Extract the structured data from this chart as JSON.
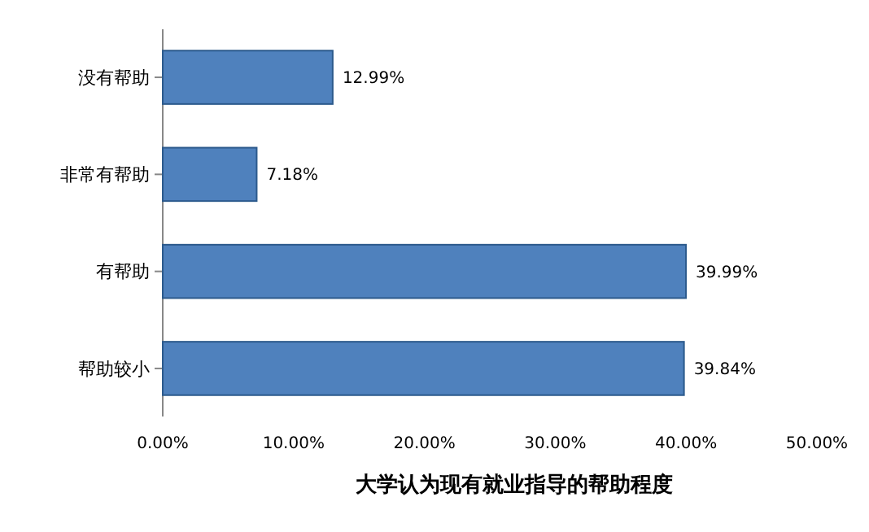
{
  "chart_data": {
    "type": "bar",
    "orientation": "horizontal",
    "title": "大学认为现有就业指导的帮助程度",
    "categories": [
      "没有帮助",
      "非常有帮助",
      "有帮助",
      "帮助较小"
    ],
    "values": [
      12.99,
      7.18,
      39.99,
      39.84
    ],
    "value_labels": [
      "12.99%",
      "7.18%",
      "39.99%",
      "39.84%"
    ],
    "color": "#4f81bd",
    "xlim": [
      0,
      50
    ],
    "xticks": [
      {
        "value": 0,
        "label": "0.00%"
      },
      {
        "value": 10,
        "label": "10.00%"
      },
      {
        "value": 20,
        "label": "20.00%"
      },
      {
        "value": 30,
        "label": "30.00%"
      },
      {
        "value": 40,
        "label": "40.00%"
      },
      {
        "value": 50,
        "label": "50.00%"
      }
    ]
  }
}
